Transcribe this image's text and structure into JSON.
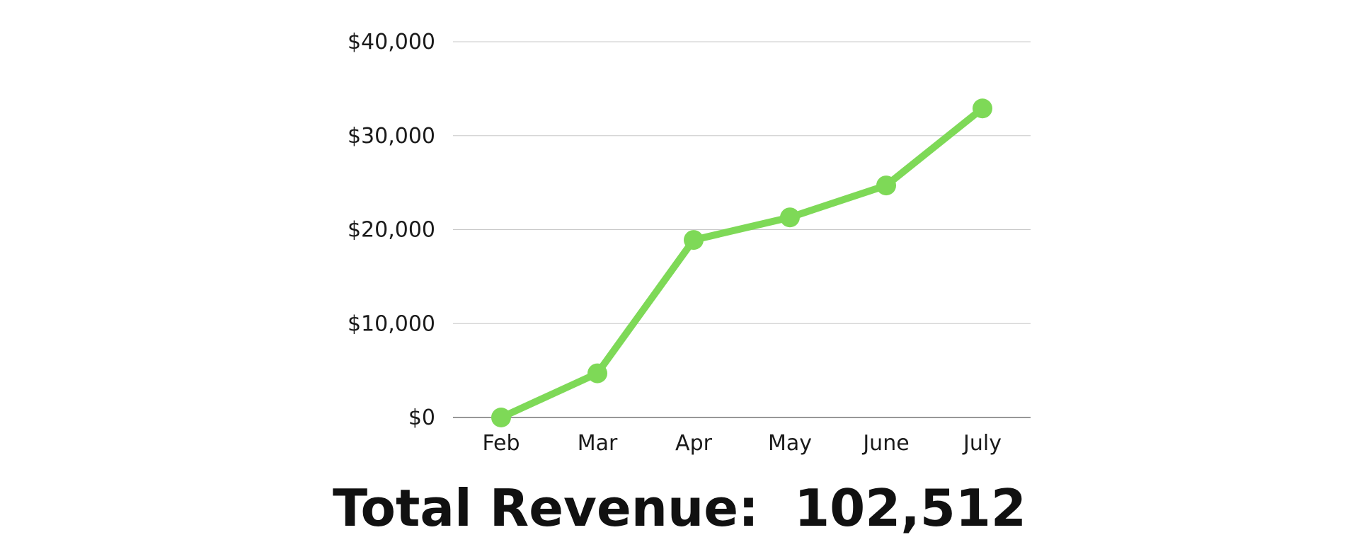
{
  "chart_data": {
    "type": "line",
    "categories": [
      "Feb",
      "Mar",
      "Apr",
      "May",
      "June",
      "July"
    ],
    "series": [
      {
        "values": [
          0,
          4700,
          18900,
          21300,
          24700,
          32900
        ]
      }
    ],
    "yticks": [
      0,
      10000,
      20000,
      30000,
      40000
    ],
    "ytick_labels": [
      "$0",
      "$10,000",
      "$20,000",
      "$30,000",
      "$40,000"
    ],
    "ylim": [
      0,
      40000
    ],
    "grid": true,
    "legend": "none",
    "line_color": "#7ED957",
    "grid_color": "#c8c8c8",
    "axis_color": "#777777"
  },
  "footer": {
    "label": "Total Revenue:",
    "value": "102,512"
  }
}
